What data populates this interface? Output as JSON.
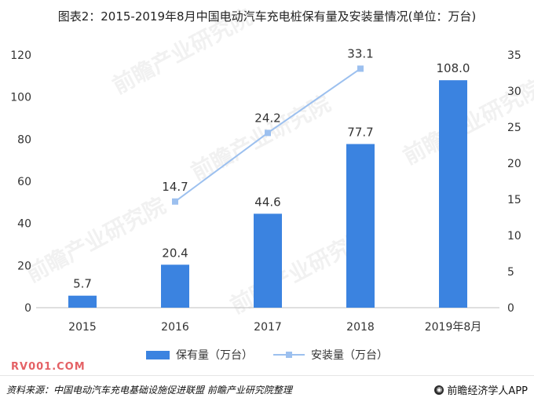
{
  "title": "图表2：2015-2019年8月中国电动汽车充电桩保有量及安装量情况(单位：万台)",
  "source": "资料来源：中国电动汽车充电基础设施促进联盟 前瞻产业研究院整理",
  "brand": "前瞻经济学人APP",
  "watermark_text": "RV001.COM",
  "colors": {
    "bar": "#3b83e0",
    "line": "#9cc0ef",
    "axis": "#bfbfbf"
  },
  "chart_data": {
    "type": "bar",
    "categories": [
      "2015",
      "2016",
      "2017",
      "2018",
      "2019年8月"
    ],
    "series": [
      {
        "name": "保有量（万台）",
        "type": "bar",
        "axis": "left",
        "values": [
          5.7,
          20.4,
          44.6,
          77.7,
          108.0
        ],
        "labels": [
          "5.7",
          "20.4",
          "44.6",
          "77.7",
          "108.0"
        ]
      },
      {
        "name": "安装量（万台）",
        "type": "line",
        "axis": "right",
        "values": [
          null,
          14.7,
          24.2,
          33.1,
          null
        ],
        "labels": [
          "",
          "14.7",
          "24.2",
          "33.1",
          ""
        ]
      }
    ],
    "y_left": {
      "min": 0,
      "max": 120,
      "step": 20,
      "ticks": [
        "0",
        "20",
        "40",
        "60",
        "80",
        "100",
        "120"
      ]
    },
    "y_right": {
      "min": 0,
      "max": 35,
      "step": 5,
      "ticks": [
        "0",
        "5",
        "10",
        "15",
        "20",
        "25",
        "30",
        "35"
      ]
    },
    "grid": false,
    "legend": "bottom-center"
  }
}
